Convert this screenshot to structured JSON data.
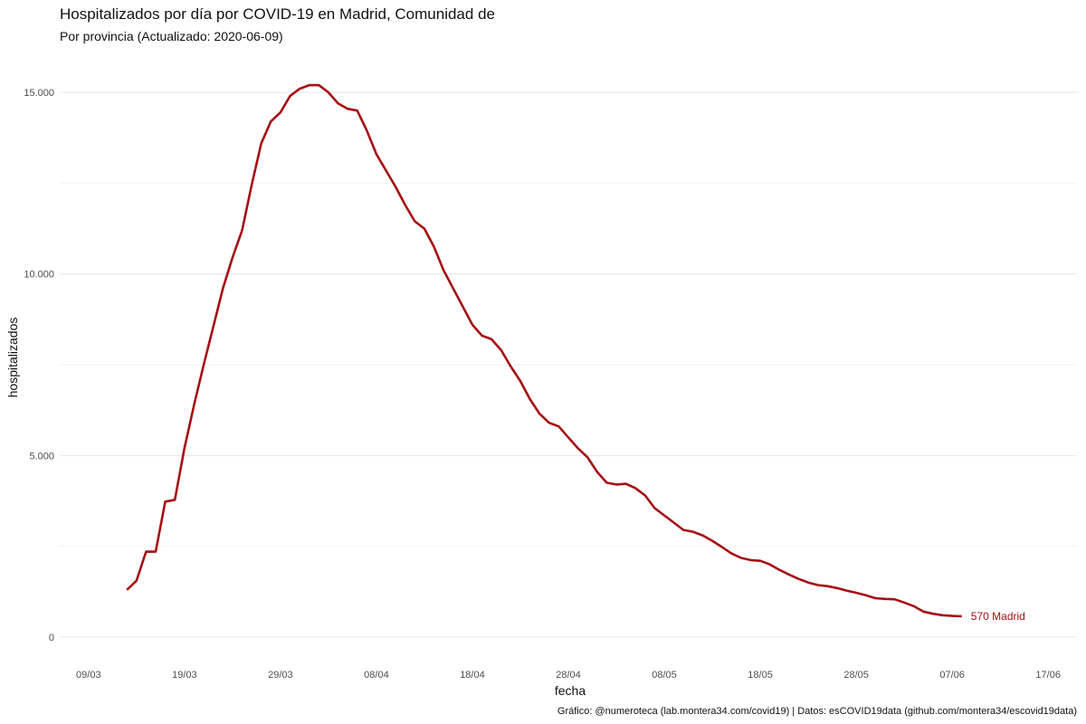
{
  "chart_data": {
    "type": "line",
    "title": "Hospitalizados por día por COVID-19 en Madrid, Comunidad de",
    "subtitle": "Por provincia  (Actualizado: 2020-06-09)",
    "xlabel": "fecha",
    "ylabel": "hospitalizados",
    "caption": "Gráfico: @numeroteca (lab.montera34.com/covid19) | Datos: esCOVID19data (github.com/montera34/escovid19data)",
    "x_domain": [
      "2020-03-06",
      "2020-06-20"
    ],
    "ylim": [
      -700,
      16000
    ],
    "x_ticks": [
      {
        "date": "2020-03-09",
        "label": "09/03"
      },
      {
        "date": "2020-03-19",
        "label": "19/03"
      },
      {
        "date": "2020-03-29",
        "label": "29/03"
      },
      {
        "date": "2020-04-08",
        "label": "08/04"
      },
      {
        "date": "2020-04-18",
        "label": "18/04"
      },
      {
        "date": "2020-04-28",
        "label": "28/04"
      },
      {
        "date": "2020-05-08",
        "label": "08/05"
      },
      {
        "date": "2020-05-18",
        "label": "18/05"
      },
      {
        "date": "2020-05-28",
        "label": "28/05"
      },
      {
        "date": "2020-06-07",
        "label": "07/06"
      },
      {
        "date": "2020-06-17",
        "label": "17/06"
      }
    ],
    "y_ticks": [
      {
        "value": 0,
        "label": "0"
      },
      {
        "value": 5000,
        "label": "5.000"
      },
      {
        "value": 10000,
        "label": "10.000"
      },
      {
        "value": 15000,
        "label": "15.000"
      }
    ],
    "y_minor": [
      2500,
      7500,
      12500
    ],
    "grid": true,
    "legend": "none",
    "line_color": "#a50f15",
    "end_label": "570 Madrid",
    "series": [
      {
        "name": "Madrid",
        "x": [
          "2020-03-13",
          "2020-03-14",
          "2020-03-15",
          "2020-03-16",
          "2020-03-17",
          "2020-03-18",
          "2020-03-19",
          "2020-03-20",
          "2020-03-21",
          "2020-03-22",
          "2020-03-23",
          "2020-03-24",
          "2020-03-25",
          "2020-03-26",
          "2020-03-27",
          "2020-03-28",
          "2020-03-29",
          "2020-03-30",
          "2020-03-31",
          "2020-04-01",
          "2020-04-02",
          "2020-04-03",
          "2020-04-04",
          "2020-04-05",
          "2020-04-06",
          "2020-04-07",
          "2020-04-08",
          "2020-04-09",
          "2020-04-10",
          "2020-04-11",
          "2020-04-12",
          "2020-04-13",
          "2020-04-14",
          "2020-04-15",
          "2020-04-16",
          "2020-04-17",
          "2020-04-18",
          "2020-04-19",
          "2020-04-20",
          "2020-04-21",
          "2020-04-22",
          "2020-04-23",
          "2020-04-24",
          "2020-04-25",
          "2020-04-26",
          "2020-04-27",
          "2020-04-28",
          "2020-04-29",
          "2020-04-30",
          "2020-05-01",
          "2020-05-02",
          "2020-05-03",
          "2020-05-04",
          "2020-05-05",
          "2020-05-06",
          "2020-05-07",
          "2020-05-08",
          "2020-05-09",
          "2020-05-10",
          "2020-05-11",
          "2020-05-12",
          "2020-05-13",
          "2020-05-14",
          "2020-05-15",
          "2020-05-16",
          "2020-05-17",
          "2020-05-18",
          "2020-05-19",
          "2020-05-20",
          "2020-05-21",
          "2020-05-22",
          "2020-05-23",
          "2020-05-24",
          "2020-05-25",
          "2020-05-26",
          "2020-05-27",
          "2020-05-28",
          "2020-05-29",
          "2020-05-30",
          "2020-05-31",
          "2020-06-01",
          "2020-06-02",
          "2020-06-03",
          "2020-06-04",
          "2020-06-05",
          "2020-06-06",
          "2020-06-07",
          "2020-06-08"
        ],
        "values": [
          1300,
          1550,
          2350,
          2350,
          3730,
          3780,
          5200,
          6400,
          7500,
          8550,
          9600,
          10450,
          11200,
          12450,
          13600,
          14200,
          14450,
          14900,
          15100,
          15200,
          15200,
          15000,
          14700,
          14550,
          14500,
          13950,
          13300,
          12850,
          12400,
          11900,
          11450,
          11250,
          10750,
          10100,
          9600,
          9100,
          8600,
          8300,
          8200,
          7900,
          7450,
          7050,
          6550,
          6150,
          5900,
          5800,
          5500,
          5200,
          4950,
          4550,
          4250,
          4200,
          4220,
          4100,
          3900,
          3550,
          3350,
          3150,
          2950,
          2900,
          2800,
          2650,
          2480,
          2300,
          2180,
          2120,
          2100,
          2000,
          1850,
          1720,
          1600,
          1500,
          1430,
          1400,
          1350,
          1280,
          1220,
          1150,
          1070,
          1050,
          1040,
          950,
          850,
          700,
          640,
          600,
          580,
          570
        ]
      }
    ]
  }
}
